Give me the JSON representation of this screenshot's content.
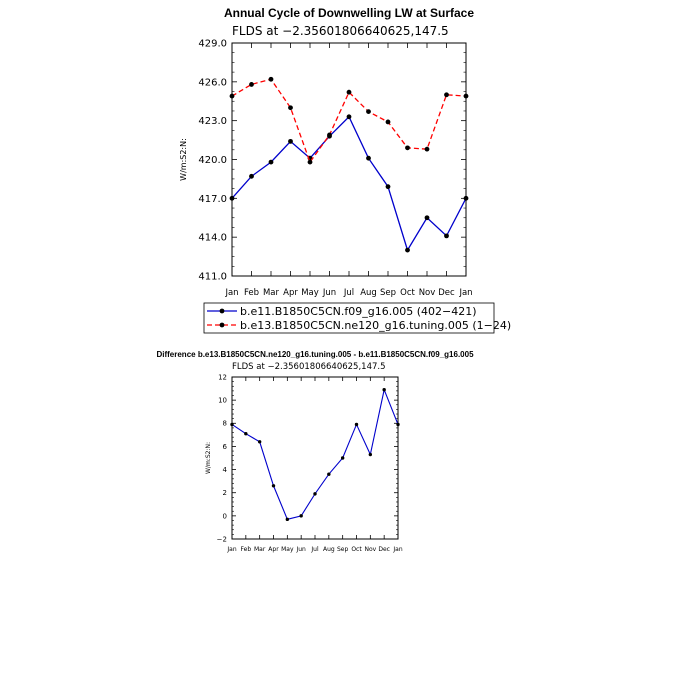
{
  "chart_data": [
    {
      "type": "line",
      "title": "Annual Cycle of Downwelling LW at Surface",
      "subtitle": "FLDS at −2.35601806640625,147.5",
      "ylabel": "W/m:S2:N:",
      "xlabel": "",
      "categories": [
        "Jan",
        "Feb",
        "Mar",
        "Apr",
        "May",
        "Jun",
        "Jul",
        "Aug",
        "Sep",
        "Oct",
        "Nov",
        "Dec",
        "Jan"
      ],
      "ylim": [
        411.0,
        429.0
      ],
      "yticks": [
        "411.0",
        "414.0",
        "417.0",
        "420.0",
        "423.0",
        "426.0",
        "429.0"
      ],
      "series": [
        {
          "name": "b.e11.B1850C5CN.f09_g16.005 (402−421)",
          "color": "#0000cc",
          "dash": "solid",
          "values": [
            417.0,
            418.7,
            419.8,
            421.4,
            420.1,
            421.8,
            423.3,
            420.1,
            417.9,
            413.0,
            415.5,
            414.1,
            417.0
          ]
        },
        {
          "name": "b.e13.B1850C5CN.ne120_g16.tuning.005 (1−24)",
          "color": "#ff0000",
          "dash": "dashed",
          "values": [
            424.9,
            425.8,
            426.2,
            424.0,
            419.8,
            421.9,
            425.2,
            423.7,
            422.9,
            420.9,
            420.8,
            425.0,
            424.9
          ]
        }
      ]
    },
    {
      "type": "line",
      "title": "Difference b.e13.B1850C5CN.ne120_g16.tuning.005 - b.e11.B1850C5CN.f09_g16.005",
      "subtitle": "FLDS at −2.35601806640625,147.5",
      "ylabel": "W/m:S2:N:",
      "xlabel": "",
      "categories": [
        "Jan",
        "Feb",
        "Mar",
        "Apr",
        "May",
        "Jun",
        "Jul",
        "Aug",
        "Sep",
        "Oct",
        "Nov",
        "Dec",
        "Jan"
      ],
      "ylim": [
        -2,
        12
      ],
      "yticks": [
        "−2",
        "0",
        "2",
        "4",
        "6",
        "8",
        "10",
        "12"
      ],
      "series": [
        {
          "name": "",
          "color": "#0000cc",
          "dash": "solid",
          "values": [
            7.9,
            7.1,
            6.4,
            2.6,
            -0.3,
            0.0,
            1.9,
            3.6,
            5.0,
            7.9,
            5.3,
            10.9,
            7.9
          ]
        }
      ]
    }
  ]
}
